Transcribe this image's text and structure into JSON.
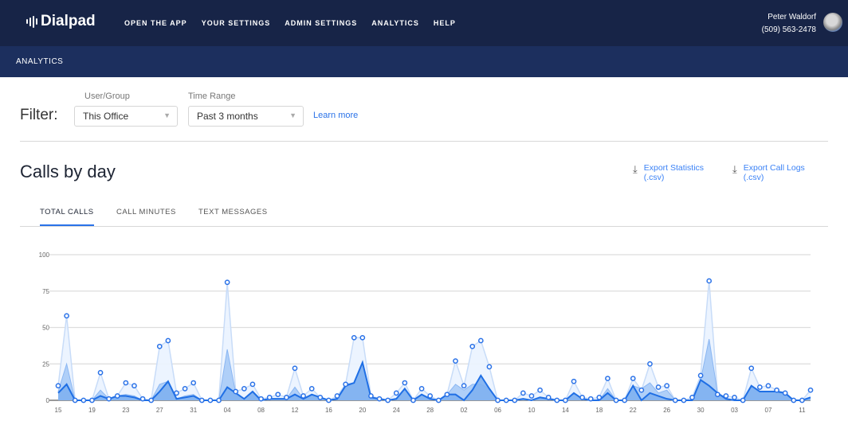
{
  "header": {
    "logo": "Dialpad",
    "nav": [
      "OPEN THE APP",
      "YOUR SETTINGS",
      "ADMIN SETTINGS",
      "ANALYTICS",
      "HELP"
    ],
    "user_name": "Peter Waldorf",
    "user_phone": "(509) 563-2478"
  },
  "subheader": {
    "title": "ANALYTICS"
  },
  "filter": {
    "label": "Filter:",
    "user_group_label": "User/Group",
    "user_group_value": "This Office",
    "time_range_label": "Time Range",
    "time_range_value": "Past 3 months",
    "learn_more": "Learn more"
  },
  "section": {
    "title": "Calls by day",
    "export_stats": "Export Statistics",
    "export_stats_ext": "(.csv)",
    "export_logs": "Export Call Logs",
    "export_logs_ext": "(.csv)"
  },
  "tabs": [
    {
      "label": "TOTAL CALLS",
      "active": true
    },
    {
      "label": "CALL MINUTES",
      "active": false
    },
    {
      "label": "TEXT MESSAGES",
      "active": false
    }
  ],
  "colors": {
    "accent": "#2a72e8",
    "header": "#172447",
    "subheader": "#1c2f5e"
  },
  "chart_data": {
    "type": "area",
    "ylim": [
      0,
      100
    ],
    "yticks": [
      0,
      25,
      50,
      75,
      100
    ],
    "xtick_labels": [
      "15",
      "19",
      "23",
      "27",
      "31",
      "04",
      "08",
      "12",
      "16",
      "20",
      "24",
      "28",
      "02",
      "06",
      "10",
      "14",
      "18",
      "22",
      "26",
      "30",
      "03",
      "07",
      "11"
    ],
    "xtick_every": 4,
    "series": [
      {
        "name": "total",
        "values": [
          10,
          58,
          0,
          0,
          0,
          19,
          1,
          3,
          12,
          10,
          1,
          0,
          37,
          41,
          5,
          8,
          12,
          0,
          0,
          0,
          81,
          6,
          8,
          11,
          1,
          2,
          4,
          2,
          22,
          3,
          8,
          2,
          0,
          3,
          11,
          43,
          43,
          3,
          1,
          0,
          5,
          12,
          0,
          8,
          3,
          0,
          4,
          27,
          10,
          37,
          41,
          23,
          0,
          0,
          0,
          5,
          3,
          7,
          2,
          0,
          0,
          13,
          2,
          1,
          2,
          15,
          0,
          0,
          15,
          7,
          25,
          9,
          10,
          0,
          0,
          2,
          17,
          82,
          4,
          3,
          2,
          0,
          22,
          9,
          10,
          7,
          5,
          0,
          0,
          7
        ]
      },
      {
        "name": "mid",
        "values": [
          6,
          25,
          0,
          0,
          0,
          7,
          1,
          3,
          4,
          3,
          0,
          0,
          11,
          13,
          1,
          3,
          4,
          0,
          0,
          0,
          35,
          5,
          1,
          6,
          0,
          1,
          1,
          1,
          9,
          1,
          4,
          2,
          0,
          1,
          11,
          12,
          26,
          2,
          1,
          0,
          1,
          8,
          0,
          4,
          1,
          0,
          4,
          11,
          7,
          11,
          11,
          8,
          0,
          0,
          0,
          1,
          0,
          2,
          1,
          0,
          0,
          5,
          1,
          0,
          0,
          8,
          0,
          0,
          10,
          8,
          12,
          5,
          7,
          0,
          0,
          0,
          14,
          42,
          5,
          1,
          0,
          0,
          10,
          6,
          6,
          6,
          5,
          0,
          0,
          2
        ]
      },
      {
        "name": "primary",
        "values": [
          5,
          11,
          0,
          0,
          0,
          3,
          1,
          3,
          3,
          2,
          0,
          0,
          6,
          13,
          1,
          2,
          3,
          0,
          0,
          0,
          9,
          5,
          1,
          6,
          0,
          1,
          1,
          1,
          4,
          1,
          4,
          2,
          0,
          1,
          10,
          12,
          26,
          2,
          1,
          0,
          1,
          8,
          0,
          4,
          1,
          0,
          4,
          4,
          0,
          7,
          17,
          8,
          0,
          0,
          0,
          1,
          0,
          2,
          1,
          0,
          0,
          5,
          1,
          0,
          0,
          5,
          0,
          0,
          10,
          0,
          5,
          3,
          1,
          0,
          0,
          0,
          14,
          10,
          5,
          1,
          0,
          0,
          10,
          6,
          6,
          6,
          5,
          0,
          0,
          2
        ]
      }
    ]
  }
}
